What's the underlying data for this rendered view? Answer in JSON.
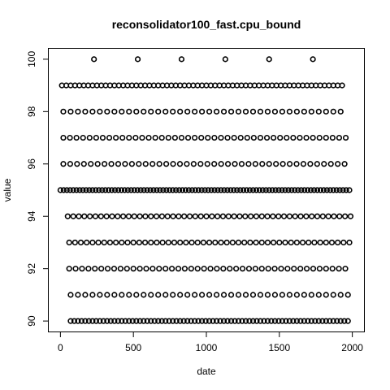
{
  "chart_data": {
    "type": "scatter",
    "title": "reconsolidator100_fast.cpu_bound",
    "xlabel": "date",
    "ylabel": "value",
    "xlim": [
      -80,
      2080
    ],
    "ylim": [
      89.6,
      100.4
    ],
    "xticks": [
      0,
      500,
      1000,
      1500,
      2000
    ],
    "yticks": [
      90,
      92,
      94,
      96,
      98,
      100
    ],
    "grid": false,
    "marker": "open-circle",
    "series": [
      {
        "levels": [
          {
            "y": 100,
            "x": [
              230,
              530,
              830,
              1130,
              1430,
              1730
            ]
          },
          {
            "y": 99,
            "start": 10,
            "step": 30,
            "end": 1950
          },
          {
            "y": 98,
            "start": 20,
            "step": 50,
            "end": 1960
          },
          {
            "y": 97,
            "start": 20,
            "step": 45,
            "end": 1960
          },
          {
            "y": 96,
            "start": 20,
            "step": 47,
            "end": 1960
          },
          {
            "y": 95,
            "start": 0,
            "step": 22,
            "end": 1990
          },
          {
            "y": 94,
            "start": 50,
            "step": 38,
            "end": 1990
          },
          {
            "y": 93,
            "start": 60,
            "step": 40,
            "end": 1990
          },
          {
            "y": 92,
            "start": 60,
            "step": 44,
            "end": 1990
          },
          {
            "y": 91,
            "start": 70,
            "step": 50,
            "end": 1990
          },
          {
            "y": 90,
            "start": 70,
            "step": 25,
            "end": 1990
          }
        ]
      }
    ]
  }
}
